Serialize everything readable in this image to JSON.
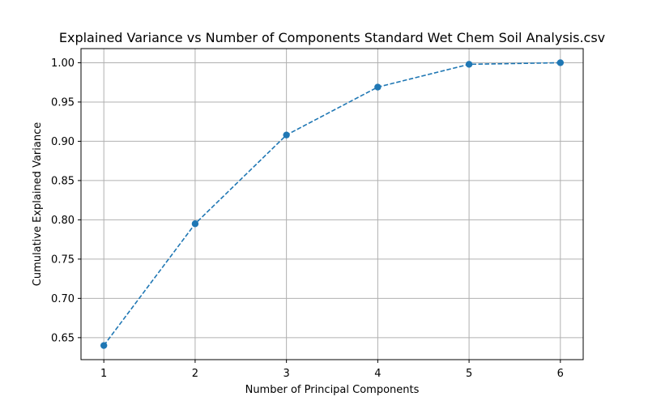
{
  "chart_data": {
    "type": "line",
    "title": "Explained Variance vs Number of Components Standard Wet Chem Soil Analysis.csv",
    "xlabel": "Number of Principal Components",
    "ylabel": "Cumulative Explained Variance",
    "x": [
      1,
      2,
      3,
      4,
      5,
      6
    ],
    "series": [
      {
        "values": [
          0.64,
          0.795,
          0.908,
          0.969,
          0.998,
          1.0
        ]
      }
    ],
    "xlim": [
      0.75,
      6.25
    ],
    "ylim": [
      0.622,
      1.018
    ],
    "xticks": [
      "1",
      "2",
      "3",
      "4",
      "5",
      "6"
    ],
    "yticks": [
      "0.65",
      "0.70",
      "0.75",
      "0.80",
      "0.85",
      "0.90",
      "0.95",
      "1.00"
    ],
    "grid": true,
    "line_style": "dashed",
    "marker": "circle",
    "color": "#1f77b4"
  }
}
